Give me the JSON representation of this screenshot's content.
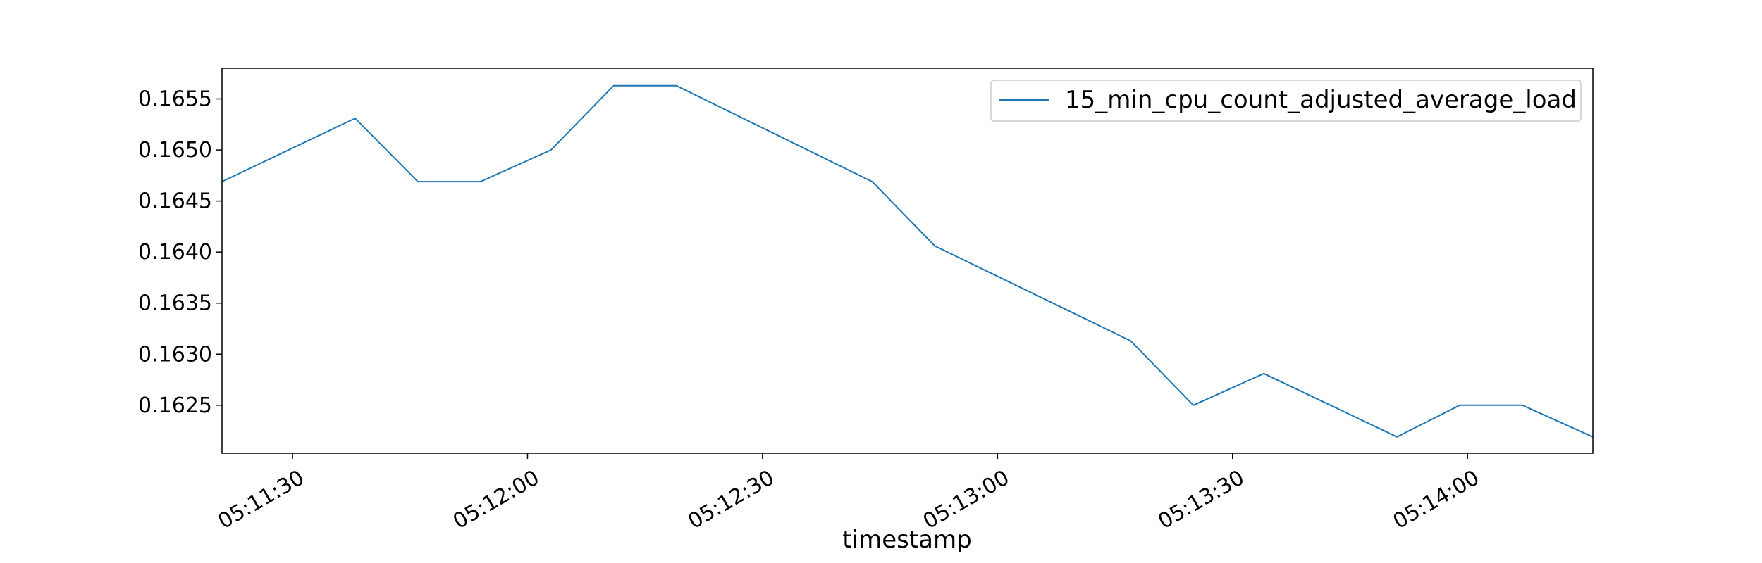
{
  "chart_data": {
    "type": "line",
    "title": "",
    "xlabel": "timestamp",
    "ylabel": "",
    "grid": false,
    "legend_position": "top-right",
    "line_color": "#1f77b4",
    "x_ticks": [
      "05:11:30",
      "05:12:00",
      "05:12:30",
      "05:13:00",
      "05:13:30",
      "05:14:00"
    ],
    "y_ticks": [
      "0.1625",
      "0.1630",
      "0.1635",
      "0.1640",
      "0.1645",
      "0.1650",
      "0.1655"
    ],
    "xlim": [
      "05:11:21",
      "05:14:16"
    ],
    "ylim": [
      0.16203,
      0.1658
    ],
    "series": [
      {
        "name": "15_min_cpu_count_adjusted_average_load",
        "x": [
          "05:11:21",
          "05:11:38",
          "05:11:46",
          "05:11:54",
          "05:12:03",
          "05:12:11",
          "05:12:19",
          "05:12:44",
          "05:12:52",
          "05:13:17",
          "05:13:25",
          "05:13:34",
          "05:13:51",
          "05:13:59",
          "05:14:07",
          "05:14:16"
        ],
        "values": [
          0.16469,
          0.16531,
          0.16469,
          0.16469,
          0.165,
          0.16563,
          0.16563,
          0.16469,
          0.16406,
          0.16313,
          0.1625,
          0.16281,
          0.16219,
          0.1625,
          0.1625,
          0.16219
        ]
      }
    ]
  }
}
